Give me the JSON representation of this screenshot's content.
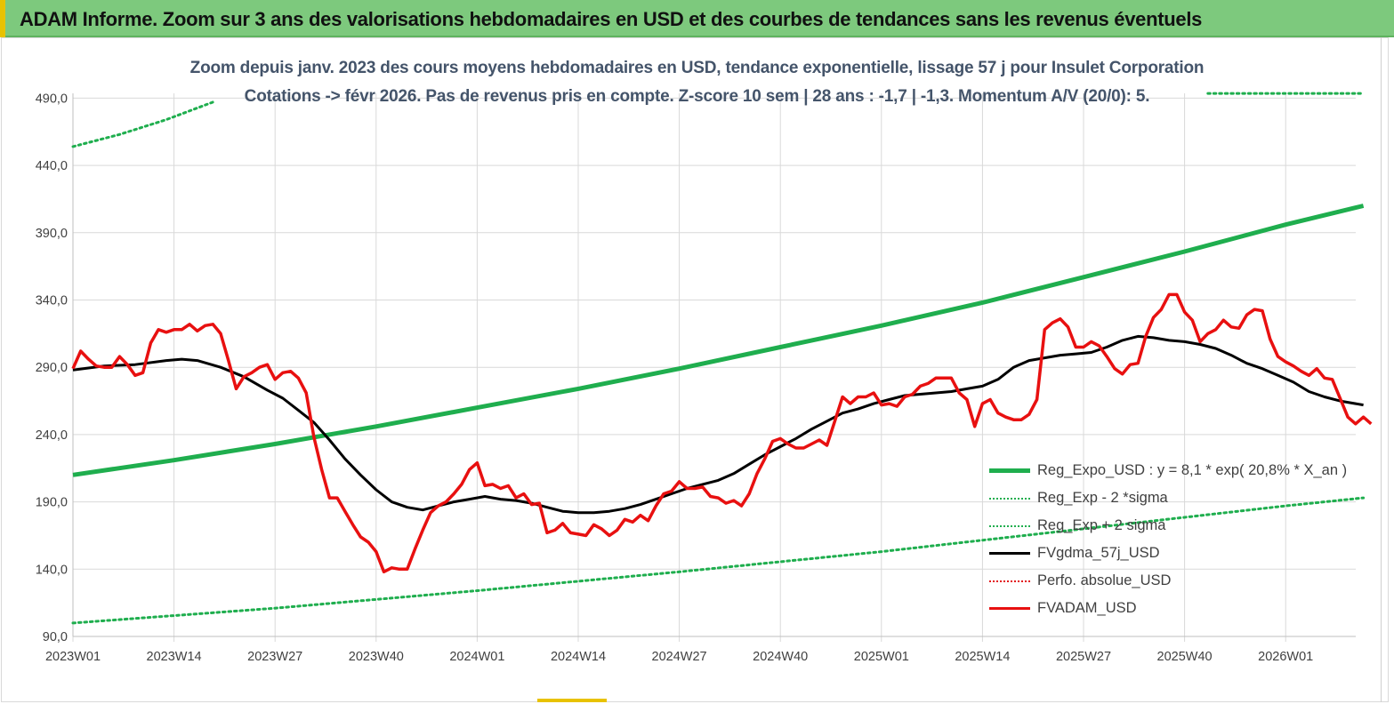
{
  "banner": {
    "title": "ADAM Informe. Zoom sur 3 ans des valorisations hebdomadaires en USD et des courbes de tendances sans les revenus éventuels"
  },
  "colors": {
    "banner_bg": "#7dc97d",
    "trend": "#1fae4e",
    "sigma": "#1fae4e",
    "smooth": "#000000",
    "perfo": "#e31a1c",
    "price": "#e81010",
    "grid": "#d9d9d9",
    "subtitle": "#44546a"
  },
  "chart_data": {
    "type": "line",
    "title": "Zoom depuis janv. 2023 des cours moyens hebdomadaires en USD, tendance exponentielle, lissage 57 j pour Insulet Corporation",
    "subtitle": "Cotations -> févr 2026.  Pas de revenus pris en compte. Z-score 10 sem  | 28 ans : -1,7 | -1,3. Momentum A/V (20/0): 5.",
    "x_ticks": [
      "2023W01",
      "2023W14",
      "2023W27",
      "2023W40",
      "2024W01",
      "2024W14",
      "2024W27",
      "2024W40",
      "2025W01",
      "2025W14",
      "2025W27",
      "2025W40",
      "2026W01"
    ],
    "y_ticks": [
      "90,0",
      "140,0",
      "190,0",
      "240,0",
      "290,0",
      "340,0",
      "390,0",
      "440,0",
      "490,0"
    ],
    "ylim": [
      90,
      500
    ],
    "x_range_weeks": [
      0,
      166
    ],
    "grid": "vertical and horizontal",
    "legend_position": "bottom-right",
    "series": [
      {
        "name": "Reg_Expo_USD : y = 8,1  * exp( 20,8% *  X_an )",
        "style": "solid-thick",
        "points": [
          [
            0,
            210
          ],
          [
            13,
            221
          ],
          [
            26,
            233
          ],
          [
            39,
            246
          ],
          [
            52,
            260
          ],
          [
            65,
            274
          ],
          [
            78,
            289
          ],
          [
            91,
            305
          ],
          [
            104,
            321
          ],
          [
            117,
            338
          ],
          [
            130,
            357
          ],
          [
            143,
            376
          ],
          [
            156,
            396
          ],
          [
            166,
            410
          ]
        ]
      },
      {
        "name": "Reg_Exp - 2 *sigma",
        "style": "dotted",
        "points": [
          [
            0,
            100
          ],
          [
            26,
            111
          ],
          [
            52,
            124
          ],
          [
            78,
            138
          ],
          [
            104,
            153
          ],
          [
            130,
            170
          ],
          [
            156,
            187
          ],
          [
            166,
            193
          ]
        ]
      },
      {
        "name": "Reg_Exp + 2 sigma",
        "style": "dotted",
        "points": [
          [
            0,
            454
          ],
          [
            6,
            463
          ],
          [
            12,
            474
          ],
          [
            18,
            487
          ],
          [
            144,
            500
          ],
          [
            166,
            500
          ]
        ],
        "visible_segments": [
          [
            0,
            18
          ],
          [
            144,
            166
          ]
        ]
      },
      {
        "name": "FVgdma_57j_USD",
        "style": "solid",
        "points": [
          [
            0,
            288
          ],
          [
            4,
            291
          ],
          [
            8,
            292
          ],
          [
            12,
            295
          ],
          [
            14,
            296
          ],
          [
            16,
            295
          ],
          [
            19,
            290
          ],
          [
            22,
            283
          ],
          [
            25,
            273
          ],
          [
            27,
            267
          ],
          [
            29,
            258
          ],
          [
            31,
            249
          ],
          [
            33,
            236
          ],
          [
            35,
            222
          ],
          [
            37,
            210
          ],
          [
            39,
            199
          ],
          [
            41,
            190
          ],
          [
            43,
            186
          ],
          [
            45,
            184
          ],
          [
            47,
            187
          ],
          [
            49,
            190
          ],
          [
            51,
            192
          ],
          [
            53,
            194
          ],
          [
            55,
            192
          ],
          [
            57,
            191
          ],
          [
            59,
            189
          ],
          [
            61,
            186
          ],
          [
            63,
            183
          ],
          [
            65,
            182
          ],
          [
            67,
            182
          ],
          [
            69,
            183
          ],
          [
            71,
            185
          ],
          [
            73,
            188
          ],
          [
            75,
            192
          ],
          [
            77,
            196
          ],
          [
            79,
            200
          ],
          [
            81,
            203
          ],
          [
            83,
            206
          ],
          [
            85,
            211
          ],
          [
            87,
            218
          ],
          [
            89,
            225
          ],
          [
            91,
            231
          ],
          [
            93,
            237
          ],
          [
            95,
            244
          ],
          [
            97,
            250
          ],
          [
            99,
            256
          ],
          [
            101,
            259
          ],
          [
            103,
            263
          ],
          [
            105,
            266
          ],
          [
            107,
            269
          ],
          [
            109,
            270
          ],
          [
            111,
            271
          ],
          [
            113,
            272
          ],
          [
            115,
            274
          ],
          [
            117,
            276
          ],
          [
            119,
            281
          ],
          [
            121,
            290
          ],
          [
            123,
            295
          ],
          [
            125,
            297
          ],
          [
            127,
            299
          ],
          [
            129,
            300
          ],
          [
            131,
            301
          ],
          [
            133,
            305
          ],
          [
            135,
            310
          ],
          [
            137,
            313
          ],
          [
            139,
            312
          ],
          [
            141,
            310
          ],
          [
            143,
            309
          ],
          [
            145,
            307
          ],
          [
            147,
            304
          ],
          [
            149,
            299
          ],
          [
            151,
            293
          ],
          [
            153,
            289
          ],
          [
            155,
            284
          ],
          [
            157,
            279
          ],
          [
            159,
            272
          ],
          [
            161,
            268
          ],
          [
            163,
            265
          ],
          [
            166,
            262
          ]
        ]
      },
      {
        "name": "Perfo. absolue_USD",
        "style": "dotted",
        "points": []
      },
      {
        "name": "FVADAM_USD",
        "style": "solid",
        "points": [
          [
            0,
            289
          ],
          [
            1,
            302
          ],
          [
            2,
            296
          ],
          [
            3,
            291
          ],
          [
            4,
            290
          ],
          [
            5,
            290
          ],
          [
            6,
            298
          ],
          [
            7,
            292
          ],
          [
            8,
            284
          ],
          [
            9,
            286
          ],
          [
            10,
            308
          ],
          [
            11,
            318
          ],
          [
            12,
            316
          ],
          [
            13,
            318
          ],
          [
            14,
            318
          ],
          [
            15,
            322
          ],
          [
            16,
            317
          ],
          [
            17,
            321
          ],
          [
            18,
            322
          ],
          [
            19,
            315
          ],
          [
            20,
            295
          ],
          [
            21,
            274
          ],
          [
            22,
            283
          ],
          [
            23,
            286
          ],
          [
            24,
            290
          ],
          [
            25,
            292
          ],
          [
            26,
            281
          ],
          [
            27,
            286
          ],
          [
            28,
            287
          ],
          [
            29,
            282
          ],
          [
            30,
            271
          ],
          [
            31,
            238
          ],
          [
            32,
            214
          ],
          [
            33,
            193
          ],
          [
            34,
            193
          ],
          [
            35,
            183
          ],
          [
            36,
            173
          ],
          [
            37,
            164
          ],
          [
            38,
            160
          ],
          [
            39,
            153
          ],
          [
            40,
            138
          ],
          [
            41,
            141
          ],
          [
            42,
            140
          ],
          [
            43,
            140
          ],
          [
            44,
            155
          ],
          [
            45,
            169
          ],
          [
            46,
            182
          ],
          [
            47,
            187
          ],
          [
            48,
            190
          ],
          [
            49,
            196
          ],
          [
            50,
            203
          ],
          [
            51,
            214
          ],
          [
            52,
            219
          ],
          [
            53,
            202
          ],
          [
            54,
            203
          ],
          [
            55,
            200
          ],
          [
            56,
            202
          ],
          [
            57,
            193
          ],
          [
            58,
            196
          ],
          [
            59,
            188
          ],
          [
            60,
            189
          ],
          [
            61,
            167
          ],
          [
            62,
            169
          ],
          [
            63,
            174
          ],
          [
            64,
            167
          ],
          [
            65,
            166
          ],
          [
            66,
            165
          ],
          [
            67,
            173
          ],
          [
            68,
            170
          ],
          [
            69,
            165
          ],
          [
            70,
            169
          ],
          [
            71,
            177
          ],
          [
            72,
            175
          ],
          [
            73,
            180
          ],
          [
            74,
            176
          ],
          [
            75,
            187
          ],
          [
            76,
            196
          ],
          [
            77,
            198
          ],
          [
            78,
            205
          ],
          [
            79,
            200
          ],
          [
            80,
            200
          ],
          [
            81,
            201
          ],
          [
            82,
            194
          ],
          [
            83,
            193
          ],
          [
            84,
            189
          ],
          [
            85,
            191
          ],
          [
            86,
            187
          ],
          [
            87,
            196
          ],
          [
            88,
            211
          ],
          [
            89,
            222
          ],
          [
            90,
            235
          ],
          [
            91,
            237
          ],
          [
            92,
            233
          ],
          [
            93,
            230
          ],
          [
            94,
            230
          ],
          [
            95,
            233
          ],
          [
            96,
            236
          ],
          [
            97,
            232
          ],
          [
            98,
            250
          ],
          [
            99,
            268
          ],
          [
            100,
            263
          ],
          [
            101,
            268
          ],
          [
            102,
            268
          ],
          [
            103,
            271
          ],
          [
            104,
            262
          ],
          [
            105,
            263
          ],
          [
            106,
            261
          ],
          [
            107,
            268
          ],
          [
            108,
            270
          ],
          [
            109,
            276
          ],
          [
            110,
            278
          ],
          [
            111,
            282
          ],
          [
            112,
            282
          ],
          [
            113,
            282
          ],
          [
            114,
            271
          ],
          [
            115,
            266
          ],
          [
            116,
            246
          ],
          [
            117,
            263
          ],
          [
            118,
            266
          ],
          [
            119,
            256
          ],
          [
            120,
            253
          ],
          [
            121,
            251
          ],
          [
            122,
            251
          ],
          [
            123,
            255
          ],
          [
            124,
            266
          ],
          [
            125,
            318
          ],
          [
            126,
            323
          ],
          [
            127,
            326
          ],
          [
            128,
            320
          ],
          [
            129,
            305
          ],
          [
            130,
            305
          ],
          [
            131,
            309
          ],
          [
            132,
            306
          ],
          [
            133,
            298
          ],
          [
            134,
            289
          ],
          [
            135,
            285
          ],
          [
            136,
            292
          ],
          [
            137,
            293
          ],
          [
            138,
            313
          ],
          [
            139,
            327
          ],
          [
            140,
            333
          ],
          [
            141,
            344
          ],
          [
            142,
            344
          ],
          [
            143,
            331
          ],
          [
            144,
            325
          ],
          [
            145,
            309
          ],
          [
            146,
            315
          ],
          [
            147,
            318
          ],
          [
            148,
            325
          ],
          [
            149,
            320
          ],
          [
            150,
            319
          ],
          [
            151,
            329
          ],
          [
            152,
            333
          ],
          [
            153,
            332
          ],
          [
            154,
            311
          ],
          [
            155,
            298
          ],
          [
            156,
            294
          ],
          [
            157,
            291
          ],
          [
            158,
            287
          ],
          [
            159,
            284
          ],
          [
            160,
            289
          ],
          [
            161,
            282
          ],
          [
            162,
            281
          ],
          [
            163,
            267
          ],
          [
            164,
            253
          ],
          [
            165,
            248
          ],
          [
            166,
            253
          ],
          [
            167,
            248
          ]
        ]
      }
    ]
  }
}
